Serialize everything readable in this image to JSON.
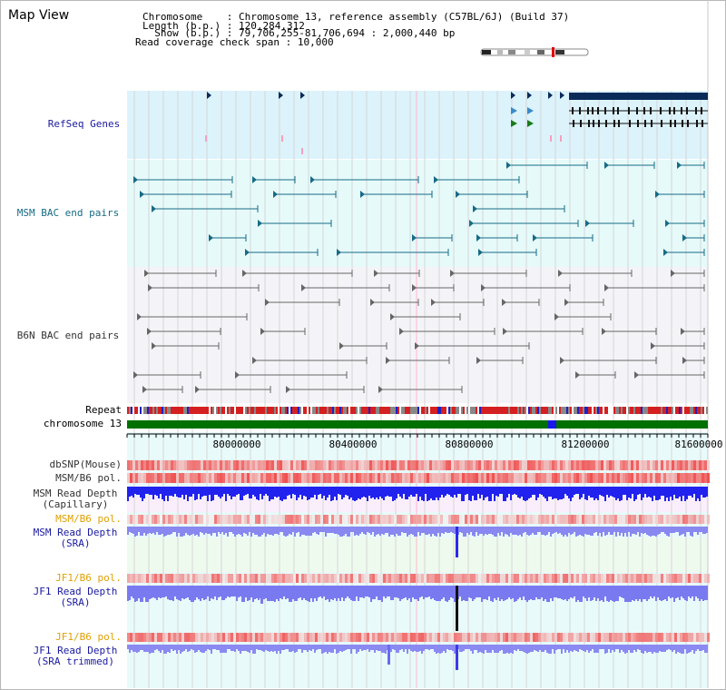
{
  "page": {
    "title": "Map View"
  },
  "header": {
    "lines": [
      {
        "key": "Chromosome    ",
        "value": "Chromosome 13, reference assembly (C57BL/6J) (Build 37)"
      },
      {
        "key": "Length (b.p.) ",
        "value": "120,284,312"
      },
      {
        "key": "  Show (b.p.) ",
        "value": "79,706,255-81,706,694 : 2,000,440 bp"
      },
      {
        "key": "Read coverage check span ",
        "value": "10,000"
      }
    ]
  },
  "tracks": {
    "refseq": {
      "label": "RefSeq Genes",
      "color": "#0a0a8a"
    },
    "msm_bac": {
      "label": "MSM BAC end pairs",
      "color": "#176b86"
    },
    "b6n_bac": {
      "label": "B6N BAC end pairs",
      "color": "#444444"
    },
    "repeat": {
      "label": "Repeat"
    },
    "chromosome": {
      "label": "chromosome 13"
    },
    "dbsnp": {
      "label": "dbSNP(Mouse)"
    },
    "msm_b6_pol": {
      "label": "MSM/B6 pol."
    },
    "msm_depth_cap": {
      "label_1": "MSM Read Depth",
      "label_2": "(Capillary)"
    },
    "msm_b6_pol_2": {
      "label": "MSM/B6 pol."
    },
    "msm_depth_sra": {
      "label_1": "MSM Read Depth",
      "label_2": "(SRA)"
    },
    "jf1_b6_pol": {
      "label": "JF1/B6 pol."
    },
    "jf1_depth_sra": {
      "label_1": "JF1 Read Depth",
      "label_2": "(SRA)"
    },
    "jf1_b6_pol_2": {
      "label": "JF1/B6 pol."
    },
    "jf1_depth_trim": {
      "label_1": "JF1 Read Depth",
      "label_2": "(SRA trimmed)"
    }
  },
  "ruler": {
    "ticks": [
      "80000000",
      "80400000",
      "80800000",
      "81200000",
      "81600000"
    ]
  },
  "colors": {
    "label_black": "#333333",
    "label_navy": "#1a1aa0",
    "label_orange": "#e0a000",
    "refseq_bg": "#dcf3fb",
    "msm_bg": "#e6fafa",
    "b6n_bg": "#f4f4f8",
    "lower_bg": "#e8fafa",
    "chrom_green": "#007000",
    "depth_blue": "#2222ee",
    "depth_light": "#7a7af0"
  }
}
